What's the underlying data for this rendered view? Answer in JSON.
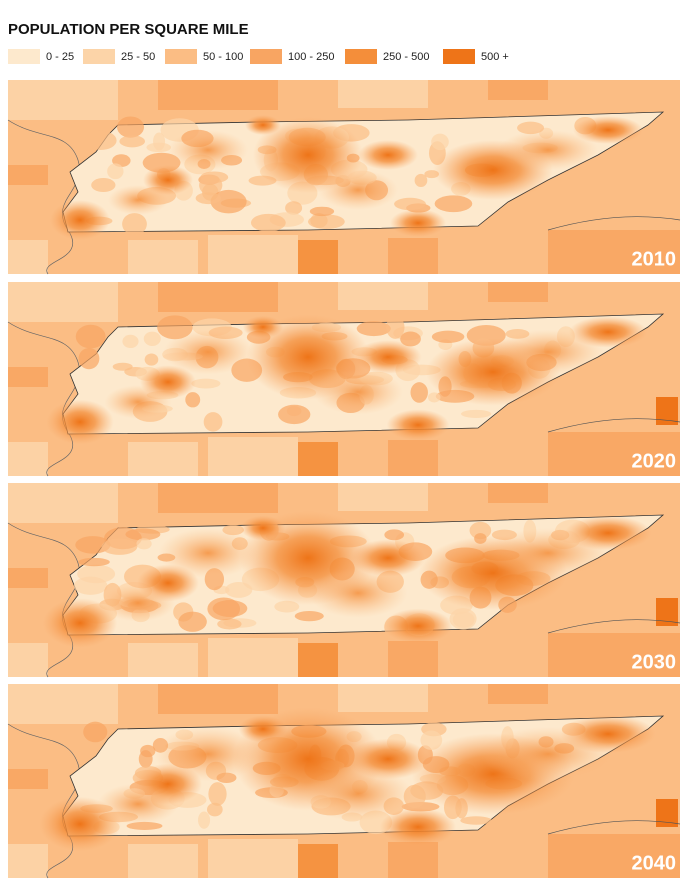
{
  "title": "POPULATION PER SQUARE MILE",
  "legend": {
    "items": [
      {
        "label": "0 - 25",
        "color": "#fde9cd"
      },
      {
        "label": "25 - 50",
        "color": "#fcd4a8"
      },
      {
        "label": "50 - 100",
        "color": "#fbbd84"
      },
      {
        "label": "100 - 250",
        "color": "#f8a562"
      },
      {
        "label": "250 - 500",
        "color": "#f48e3a"
      },
      {
        "label": "500 +",
        "color": "#ee7418"
      }
    ]
  },
  "panels": [
    {
      "year": "2010"
    },
    {
      "year": "2020"
    },
    {
      "year": "2030"
    },
    {
      "year": "2040"
    }
  ]
}
